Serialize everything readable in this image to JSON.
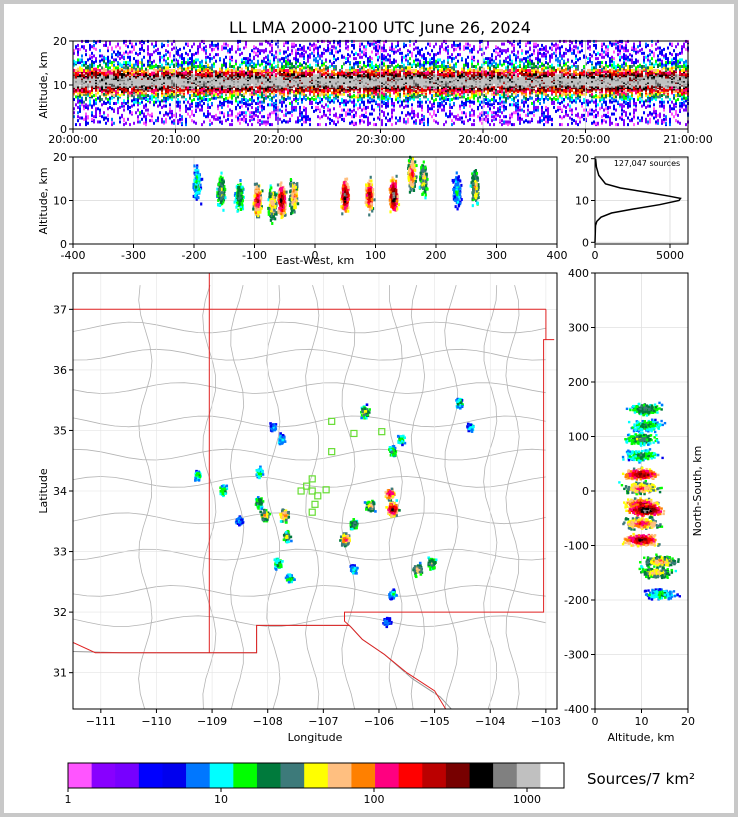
{
  "title": "LL LMA 2000-2100 UTC June 26, 2024",
  "source_count_label": "127,047 sources",
  "colorbar_label": "Sources/7 km²",
  "colors": {
    "state_border": "#e02020",
    "county_lines": "#b4b4b4",
    "station_markers": "#66dd33",
    "altitude_profile": "#000000"
  },
  "colorbar": {
    "colors": [
      "#ff55ff",
      "#8800ff",
      "#7700ff",
      "#0000ff",
      "#0000ee",
      "#0077ff",
      "#00ffff",
      "#00ff00",
      "#007a3c",
      "#3d7a7a",
      "#ffff00",
      "#ffbf80",
      "#ff8000",
      "#ff0080",
      "#ff0000",
      "#bb0000",
      "#770000",
      "#000000",
      "#808080",
      "#c0c0c0",
      "#ffffff"
    ],
    "ticks": [
      "1",
      "10",
      "100",
      "1000"
    ]
  },
  "chart_data": [
    {
      "panel": "altitude-time",
      "type": "heatmap",
      "xlabel": "",
      "ylabel": "Altitude, km",
      "x_ticks": [
        "20:00:00",
        "20:10:00",
        "20:20:00",
        "20:30:00",
        "20:40:00",
        "20:50:00",
        "21:00:00"
      ],
      "xlim": [
        "20:00:00",
        "21:00:00"
      ],
      "ylim": [
        0,
        20
      ],
      "y_ticks": [
        0,
        10,
        20
      ],
      "grid": true,
      "density": "continuous band throughout the hour, densest near 10-12 km, sources from about 2 km to 20 km"
    },
    {
      "panel": "altitude-east-west",
      "type": "heatmap",
      "xlabel": "East-West, km",
      "ylabel": "Altitude, km",
      "xlim": [
        -400,
        400
      ],
      "ylim": [
        0,
        20
      ],
      "x_ticks": [
        -400,
        -300,
        -200,
        -100,
        0,
        100,
        200,
        300,
        400
      ],
      "y_ticks": [
        0,
        10,
        20
      ],
      "grid": true,
      "clusters": [
        {
          "x_km": -195,
          "alt_km": 14,
          "intensity": 0.4
        },
        {
          "x_km": -155,
          "alt_km": 12,
          "intensity": 0.55
        },
        {
          "x_km": -125,
          "alt_km": 11,
          "intensity": 0.5
        },
        {
          "x_km": -95,
          "alt_km": 10,
          "intensity": 0.8
        },
        {
          "x_km": -70,
          "alt_km": 9,
          "intensity": 0.65
        },
        {
          "x_km": -55,
          "alt_km": 10,
          "intensity": 0.9
        },
        {
          "x_km": -35,
          "alt_km": 11,
          "intensity": 0.7
        },
        {
          "x_km": 50,
          "alt_km": 11,
          "intensity": 0.95
        },
        {
          "x_km": 90,
          "alt_km": 11,
          "intensity": 0.85
        },
        {
          "x_km": 130,
          "alt_km": 11,
          "intensity": 1.0
        },
        {
          "x_km": 160,
          "alt_km": 16,
          "intensity": 0.75
        },
        {
          "x_km": 180,
          "alt_km": 15,
          "intensity": 0.6
        },
        {
          "x_km": 235,
          "alt_km": 12,
          "intensity": 0.35
        },
        {
          "x_km": 265,
          "alt_km": 13,
          "intensity": 0.6
        }
      ]
    },
    {
      "panel": "altitude-histogram",
      "type": "line",
      "xlim": [
        0,
        6200
      ],
      "ylim": [
        0,
        20
      ],
      "x_ticks": [
        0,
        5000
      ],
      "y_ticks": [
        0,
        10,
        20
      ],
      "grid": true,
      "profile": [
        {
          "alt": 0,
          "count": 0
        },
        {
          "alt": 4,
          "count": 30
        },
        {
          "alt": 5,
          "count": 120
        },
        {
          "alt": 6,
          "count": 400
        },
        {
          "alt": 7,
          "count": 1100
        },
        {
          "alt": 8,
          "count": 2600
        },
        {
          "alt": 9,
          "count": 4300
        },
        {
          "alt": 10,
          "count": 5600
        },
        {
          "alt": 10.5,
          "count": 5700
        },
        {
          "alt": 11,
          "count": 5000
        },
        {
          "alt": 12,
          "count": 3400
        },
        {
          "alt": 13,
          "count": 1700
        },
        {
          "alt": 14,
          "count": 700
        },
        {
          "alt": 16,
          "count": 250
        },
        {
          "alt": 18,
          "count": 90
        },
        {
          "alt": 20,
          "count": 40
        }
      ]
    },
    {
      "panel": "plan-view",
      "type": "heatmap",
      "xlabel": "Longitude",
      "ylabel": "Latitude",
      "xlim": [
        -111.5,
        -102.8
      ],
      "ylim": [
        30.4,
        37.6
      ],
      "x_ticks": [
        -111,
        -110,
        -109,
        -108,
        -107,
        -106,
        -105,
        -104,
        -103
      ],
      "y_ticks": [
        31,
        32,
        33,
        34,
        35,
        36,
        37
      ],
      "grid": true,
      "clusters": [
        {
          "lon": -109.25,
          "lat": 34.25,
          "intensity": 0.4
        },
        {
          "lon": -108.8,
          "lat": 34.0,
          "intensity": 0.45
        },
        {
          "lon": -108.5,
          "lat": 33.5,
          "intensity": 0.3
        },
        {
          "lon": -108.15,
          "lat": 34.3,
          "intensity": 0.4
        },
        {
          "lon": -108.15,
          "lat": 33.8,
          "intensity": 0.5
        },
        {
          "lon": -108.05,
          "lat": 33.6,
          "intensity": 0.6
        },
        {
          "lon": -107.7,
          "lat": 33.6,
          "intensity": 0.7
        },
        {
          "lon": -107.65,
          "lat": 33.25,
          "intensity": 0.55
        },
        {
          "lon": -107.8,
          "lat": 32.8,
          "intensity": 0.45
        },
        {
          "lon": -107.6,
          "lat": 32.55,
          "intensity": 0.4
        },
        {
          "lon": -107.75,
          "lat": 34.85,
          "intensity": 0.35
        },
        {
          "lon": -107.9,
          "lat": 35.05,
          "intensity": 0.3
        },
        {
          "lon": -106.6,
          "lat": 33.2,
          "intensity": 0.75
        },
        {
          "lon": -106.45,
          "lat": 33.45,
          "intensity": 0.5
        },
        {
          "lon": -106.45,
          "lat": 32.7,
          "intensity": 0.35
        },
        {
          "lon": -106.15,
          "lat": 33.75,
          "intensity": 0.6
        },
        {
          "lon": -106.25,
          "lat": 35.3,
          "intensity": 0.55
        },
        {
          "lon": -105.75,
          "lat": 33.7,
          "intensity": 0.95
        },
        {
          "lon": -105.8,
          "lat": 33.95,
          "intensity": 0.8
        },
        {
          "lon": -105.75,
          "lat": 34.65,
          "intensity": 0.45
        },
        {
          "lon": -105.6,
          "lat": 34.85,
          "intensity": 0.4
        },
        {
          "lon": -105.75,
          "lat": 32.3,
          "intensity": 0.35
        },
        {
          "lon": -105.3,
          "lat": 32.7,
          "intensity": 0.6
        },
        {
          "lon": -105.05,
          "lat": 32.8,
          "intensity": 0.55
        },
        {
          "lon": -104.55,
          "lat": 35.45,
          "intensity": 0.4
        },
        {
          "lon": -104.35,
          "lat": 35.05,
          "intensity": 0.35
        },
        {
          "lon": -105.85,
          "lat": 31.85,
          "intensity": 0.3
        }
      ],
      "stations": [
        {
          "lon": -106.85,
          "lat": 35.15
        },
        {
          "lon": -106.45,
          "lat": 34.95
        },
        {
          "lon": -105.95,
          "lat": 34.98
        },
        {
          "lon": -106.85,
          "lat": 34.65
        },
        {
          "lon": -107.2,
          "lat": 34.2
        },
        {
          "lon": -107.3,
          "lat": 34.08
        },
        {
          "lon": -107.4,
          "lat": 34.0
        },
        {
          "lon": -107.2,
          "lat": 34.0
        },
        {
          "lon": -106.95,
          "lat": 34.02
        },
        {
          "lon": -107.1,
          "lat": 33.92
        },
        {
          "lon": -107.15,
          "lat": 33.78
        },
        {
          "lon": -107.2,
          "lat": 33.65
        }
      ]
    },
    {
      "panel": "north-south-altitude",
      "type": "heatmap",
      "xlabel": "Altitude, km",
      "ylabel": "North-South, km",
      "xlim": [
        0,
        20
      ],
      "ylim": [
        -400,
        400
      ],
      "x_ticks": [
        0,
        10,
        20
      ],
      "y_ticks": [
        -400,
        -300,
        -200,
        -100,
        0,
        100,
        200,
        300,
        400
      ],
      "grid": true,
      "clusters": [
        {
          "ns_km": 150,
          "alt_km": 11,
          "intensity": 0.5
        },
        {
          "ns_km": 120,
          "alt_km": 11,
          "intensity": 0.45
        },
        {
          "ns_km": 95,
          "alt_km": 10,
          "intensity": 0.5
        },
        {
          "ns_km": 65,
          "alt_km": 10,
          "intensity": 0.45
        },
        {
          "ns_km": 30,
          "alt_km": 10,
          "intensity": 0.9
        },
        {
          "ns_km": 5,
          "alt_km": 10,
          "intensity": 0.7
        },
        {
          "ns_km": -25,
          "alt_km": 10,
          "intensity": 0.85
        },
        {
          "ns_km": -35,
          "alt_km": 11,
          "intensity": 1.0
        },
        {
          "ns_km": -60,
          "alt_km": 10,
          "intensity": 0.75
        },
        {
          "ns_km": -90,
          "alt_km": 10,
          "intensity": 0.9
        },
        {
          "ns_km": -130,
          "alt_km": 14,
          "intensity": 0.65
        },
        {
          "ns_km": -150,
          "alt_km": 13,
          "intensity": 0.6
        },
        {
          "ns_km": -190,
          "alt_km": 14,
          "intensity": 0.4
        }
      ]
    }
  ]
}
